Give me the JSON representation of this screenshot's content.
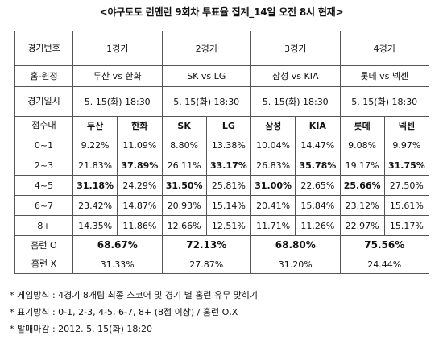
{
  "title": "<야구토토 런앤런 9회차 투표율 집계_14일 오전 8시 현재>",
  "labels": {
    "game_no": "경기번호",
    "match": "홈-원정",
    "datetime": "경기일시",
    "score_band": "점수대",
    "homerun_yes": "홈런 O",
    "homerun_no": "홈런 X"
  },
  "games": [
    {
      "label": "1경기",
      "match": "두산 vs 한화",
      "date": "5. 15(화) 18:30",
      "teams": [
        "두산",
        "한화"
      ],
      "homerun_yes": "68.67%",
      "homerun_no": "31.33%"
    },
    {
      "label": "2경기",
      "match": "SK vs LG",
      "date": "5. 15(화) 18:30",
      "teams": [
        "SK",
        "LG"
      ],
      "homerun_yes": "72.13%",
      "homerun_no": "27.87%"
    },
    {
      "label": "3경기",
      "match": "삼성 vs KIA",
      "date": "5. 15(화) 18:30",
      "teams": [
        "삼성",
        "KIA"
      ],
      "homerun_yes": "68.80%",
      "homerun_no": "31.20%"
    },
    {
      "label": "4경기",
      "match": "롯데 vs 넥센",
      "date": "5. 15(화) 18:30",
      "teams": [
        "롯데",
        "넥센"
      ],
      "homerun_yes": "75.56%",
      "homerun_no": "24.44%"
    }
  ],
  "score_rows": [
    {
      "band": "0~1",
      "values": [
        "9.22%",
        "11.09%",
        "8.80%",
        "13.38%",
        "10.04%",
        "14.47%",
        "9.08%",
        "9.97%"
      ],
      "bold": [
        false,
        false,
        false,
        false,
        false,
        false,
        false,
        false
      ]
    },
    {
      "band": "2~3",
      "values": [
        "21.83%",
        "37.89%",
        "26.11%",
        "33.17%",
        "26.83%",
        "35.78%",
        "19.17%",
        "31.75%"
      ],
      "bold": [
        false,
        true,
        false,
        true,
        false,
        true,
        false,
        true
      ]
    },
    {
      "band": "4~5",
      "values": [
        "31.18%",
        "24.29%",
        "31.50%",
        "25.81%",
        "31.00%",
        "22.65%",
        "25.66%",
        "27.50%"
      ],
      "bold": [
        true,
        false,
        true,
        false,
        true,
        false,
        true,
        false
      ]
    },
    {
      "band": "6~7",
      "values": [
        "23.42%",
        "14.87%",
        "20.93%",
        "15.14%",
        "20.41%",
        "15.84%",
        "23.12%",
        "15.61%"
      ],
      "bold": [
        false,
        false,
        false,
        false,
        false,
        false,
        false,
        false
      ]
    },
    {
      "band": "8+",
      "values": [
        "14.35%",
        "11.86%",
        "12.66%",
        "12.51%",
        "11.71%",
        "11.26%",
        "22.97%",
        "15.17%"
      ],
      "bold": [
        false,
        false,
        false,
        false,
        false,
        false,
        false,
        false
      ]
    }
  ],
  "notes": [
    "* 게임방식 : 4경기 8개팀 최종 스코어 및 경기 별 홈런 유무 맞히기",
    "* 표기방식 : 0-1, 2-3, 4-5, 6-7, 8+ (8점 이상) / 홈런 O,X",
    "* 발매마감 : 2012. 5. 15(화) 18:20"
  ]
}
